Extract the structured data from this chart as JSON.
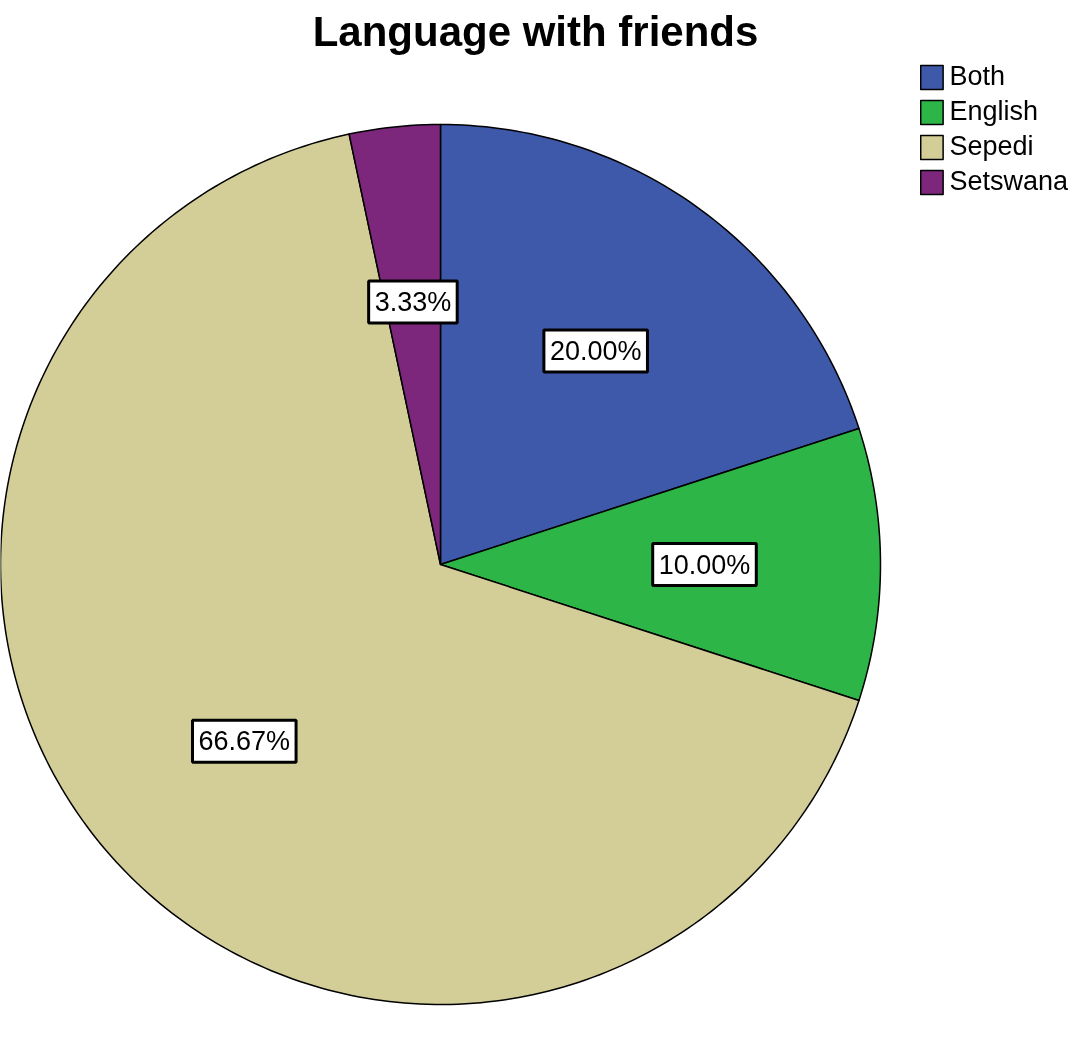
{
  "chart_data": {
    "type": "pie",
    "title": "Language with friends",
    "categories": [
      "Both",
      "English",
      "Sepedi",
      "Setswana"
    ],
    "values": [
      20,
      10,
      66.67,
      3.33
    ],
    "colors": [
      "#3e58aa",
      "#2db647",
      "#d3ce98",
      "#7c267c"
    ],
    "value_labels": [
      "20.00%",
      "10.00%",
      "66.67%",
      "3.33%"
    ],
    "legend": "top right"
  }
}
